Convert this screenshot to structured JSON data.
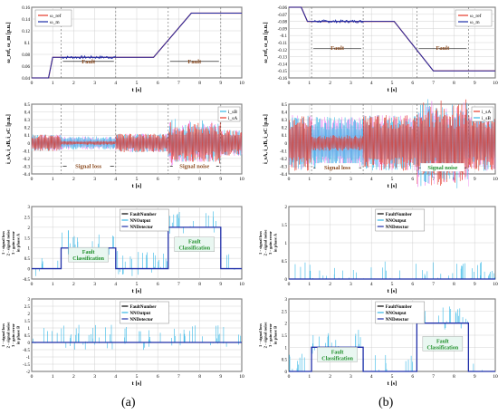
{
  "colors": {
    "blue": "#1f2ea8",
    "red": "#e53a2a",
    "cyan": "#35b7e6",
    "magenta": "#f07cf0",
    "green": "#1f8f2a",
    "brown": "#8a4a1f",
    "orange": "#d8822a",
    "grid": "#c8c8c8"
  },
  "labels": {
    "a": "(a)",
    "b": "(b)"
  },
  "chart_data": [
    {
      "id": "a1",
      "type": "line",
      "ylabel": "ω_ref, ω_m [p.u.]",
      "xlabel": "t [s]",
      "xlim": [
        0,
        10
      ],
      "ylim": [
        0.04,
        0.16
      ],
      "xticks": [
        "0",
        "1",
        "2",
        "3",
        "4",
        "5",
        "6",
        "7",
        "8",
        "9",
        "10"
      ],
      "yticks": [
        "0.04",
        "0.06",
        "0.08",
        "0.1",
        "0.12",
        "0.14",
        "0.16"
      ],
      "series": [
        {
          "name": "ω_ref",
          "color": "#e53a2a",
          "x": [
            0,
            0.8,
            1.0,
            5.8,
            7.6,
            10
          ],
          "y": [
            0.04,
            0.04,
            0.075,
            0.075,
            0.15,
            0.15
          ]
        },
        {
          "name": "ω_m",
          "color": "#1f2ea8",
          "x": [
            0,
            0.8,
            1.0,
            5.8,
            7.6,
            10
          ],
          "y": [
            0.04,
            0.04,
            0.075,
            0.075,
            0.15,
            0.15
          ]
        }
      ],
      "annotations": [
        {
          "text": "Fault",
          "x1": 1.4,
          "x2": 4.0,
          "y": 0.068
        },
        {
          "text": "Fault",
          "x1": 6.5,
          "x2": 9.0,
          "y": 0.068
        }
      ],
      "fault_lines": [
        1.4,
        4.0,
        6.5,
        9.0
      ]
    },
    {
      "id": "b1",
      "type": "line",
      "ylabel": "ω_ref, ω_m [p.u.]",
      "xlabel": "t [s]",
      "xlim": [
        0,
        10
      ],
      "ylim": [
        -0.16,
        -0.06
      ],
      "xticks": [
        "0",
        "1",
        "2",
        "3",
        "4",
        "5",
        "6",
        "7",
        "8",
        "9",
        "10"
      ],
      "yticks": [
        "-0.06",
        "-0.07",
        "-0.08",
        "-0.09",
        "-0.1",
        "-0.11",
        "-0.12",
        "-0.13",
        "-0.14",
        "-0.15",
        "-0.16"
      ],
      "series": [
        {
          "name": "ω_ref",
          "color": "#e53a2a",
          "x": [
            0,
            0.6,
            0.9,
            5.1,
            7.0,
            10
          ],
          "y": [
            -0.06,
            -0.06,
            -0.08,
            -0.08,
            -0.15,
            -0.15
          ]
        },
        {
          "name": "ω_m",
          "color": "#1f2ea8",
          "x": [
            0,
            0.6,
            0.9,
            5.1,
            7.0,
            10
          ],
          "y": [
            -0.06,
            -0.06,
            -0.08,
            -0.08,
            -0.15,
            -0.15
          ]
        }
      ],
      "annotations": [
        {
          "text": "Fault",
          "x1": 1.1,
          "x2": 3.6,
          "y": -0.118
        },
        {
          "text": "Fault",
          "x1": 6.2,
          "x2": 8.7,
          "y": -0.118
        }
      ],
      "fault_lines": [
        1.1,
        3.6,
        6.2,
        8.7
      ]
    },
    {
      "id": "a2",
      "type": "line",
      "ylabel": "i_sA, i_sB, i_sC [p.u.]",
      "xlabel": "t [s]",
      "xlim": [
        0,
        10
      ],
      "ylim": [
        -0.4,
        0.5
      ],
      "xticks": [
        "0",
        "1",
        "2",
        "3",
        "4",
        "5",
        "6",
        "7",
        "8",
        "9",
        "10"
      ],
      "yticks": [
        "-0.4",
        "-0.3",
        "-0.2",
        "-0.1",
        "0",
        "0.1",
        "0.2",
        "0.3",
        "0.4",
        "0.5"
      ],
      "series": [
        {
          "name": "i_sB",
          "color": "#35b7e6"
        },
        {
          "name": "i_sA",
          "color": "#e53a2a"
        }
      ],
      "segments": [
        {
          "x1": 0,
          "x2": 1.4,
          "amp": 0.09
        },
        {
          "x1": 1.4,
          "x2": 4.0,
          "amp": 0.07,
          "lossA": true
        },
        {
          "x1": 4.0,
          "x2": 6.5,
          "amp": 0.1
        },
        {
          "x1": 6.5,
          "x2": 9.0,
          "amp": 0.22,
          "noise": true
        },
        {
          "x1": 9.0,
          "x2": 10,
          "amp": 0.14
        }
      ],
      "annotations": [
        {
          "text": "Signal loss",
          "x1": 1.4,
          "x2": 4.0,
          "y": -0.3
        },
        {
          "text": "Signal noise",
          "x1": 6.5,
          "x2": 9.0,
          "y": -0.3
        }
      ],
      "fault_lines": [
        1.4,
        4.0,
        6.5,
        9.0
      ]
    },
    {
      "id": "b2",
      "type": "line",
      "ylabel": "i_sA, i_sB, i_sC [p.u.]",
      "xlabel": "t [s]",
      "xlim": [
        0,
        10
      ],
      "ylim": [
        -0.4,
        0.5
      ],
      "xticks": [
        "0",
        "1",
        "2",
        "3",
        "4",
        "5",
        "6",
        "7",
        "8",
        "9",
        "10"
      ],
      "yticks": [
        "-0.4",
        "-0.3",
        "-0.2",
        "-0.1",
        "0",
        "0.1",
        "0.2",
        "0.3",
        "0.4",
        "0.5"
      ],
      "series": [
        {
          "name": "i_sA",
          "color": "#e53a2a"
        },
        {
          "name": "i_sB",
          "color": "#35b7e6"
        }
      ],
      "segments": [
        {
          "x1": 0,
          "x2": 1.1,
          "amp": 0.3
        },
        {
          "x1": 1.1,
          "x2": 3.6,
          "amp": 0.28,
          "lossA": true
        },
        {
          "x1": 3.6,
          "x2": 6.2,
          "amp": 0.3
        },
        {
          "x1": 6.2,
          "x2": 8.7,
          "amp": 0.42,
          "noise": true
        },
        {
          "x1": 8.7,
          "x2": 10,
          "amp": 0.3
        }
      ],
      "annotations": [
        {
          "text": "Signal loss",
          "x1": 1.1,
          "x2": 3.6,
          "y": -0.32
        },
        {
          "text": "Signal noise",
          "x1": 6.2,
          "x2": 8.7,
          "y": -0.32
        }
      ],
      "fault_lines": [
        1.1,
        3.6,
        6.2,
        8.7
      ]
    },
    {
      "id": "a3",
      "type": "line",
      "ylabel": "1 - signal loss\n2 - signal noise\n3 - gain error\nin phase A",
      "xlabel": "t [s]",
      "xlim": [
        0,
        10
      ],
      "ylim": [
        -0.5,
        3
      ],
      "xticks": [
        "0",
        "1",
        "2",
        "3",
        "4",
        "5",
        "6",
        "7",
        "8",
        "9",
        "10"
      ],
      "yticks": [
        "-0.5",
        "0",
        "0.5",
        "1",
        "1.5",
        "2",
        "2.5",
        "3"
      ],
      "legend": [
        "Fault_Number",
        "NN_Output",
        "NN_Detector"
      ],
      "steps": [
        {
          "x1": 1.4,
          "x2": 4.0,
          "level": 1
        },
        {
          "x1": 6.5,
          "x2": 9.0,
          "level": 2
        }
      ],
      "annotations": [
        {
          "text": "Fault\nClassification",
          "x1": 1.4,
          "x2": 4.0,
          "y": 0.5
        },
        {
          "text": "Fault\nClassification",
          "x1": 6.5,
          "x2": 9.0,
          "y": 1.0
        }
      ]
    },
    {
      "id": "b3",
      "type": "line",
      "ylabel": "1 - signal loss\n2 - signal noise\n3 - gain error\nin phase A",
      "xlabel": "t [s]",
      "xlim": [
        0,
        10
      ],
      "ylim": [
        0,
        2
      ],
      "xticks": [
        "0",
        "1",
        "2",
        "3",
        "4",
        "5",
        "6",
        "7",
        "8",
        "9",
        "10"
      ],
      "yticks": [
        "0",
        "0.5",
        "1",
        "1.5",
        "2"
      ],
      "legend": [
        "Fault_Number",
        "NN_Output",
        "NN_Detector"
      ],
      "steps": []
    },
    {
      "id": "a4",
      "type": "line",
      "ylabel": "1 - signal loss\n2 - signal noise\n3 - gain error\nin phase B",
      "xlabel": "t [s]",
      "xlim": [
        0,
        10
      ],
      "ylim": [
        -2,
        3
      ],
      "xticks": [
        "0",
        "1",
        "2",
        "3",
        "4",
        "5",
        "6",
        "7",
        "8",
        "9",
        "10"
      ],
      "yticks": [
        "-2",
        "-1.5",
        "-1",
        "-0.5",
        "0",
        "0.5",
        "1",
        "1.5",
        "2",
        "2.5",
        "3"
      ],
      "legend": [
        "Fault_Number",
        "NN_Output",
        "NN_Detector"
      ],
      "steps": []
    },
    {
      "id": "b4",
      "type": "line",
      "ylabel": "1 - signal loss\n2 - signal noise\n3 - gain error\nin phase B",
      "xlabel": "t [s]",
      "xlim": [
        0,
        10
      ],
      "ylim": [
        0,
        3
      ],
      "xticks": [
        "0",
        "1",
        "2",
        "3",
        "4",
        "5",
        "6",
        "7",
        "8",
        "9",
        "10"
      ],
      "yticks": [
        "0",
        "0.5",
        "1",
        "1.5",
        "2",
        "2.5",
        "3"
      ],
      "legend": [
        "Fault_Number",
        "NN_Output",
        "NN_Detector"
      ],
      "steps": [
        {
          "x1": 1.1,
          "x2": 3.6,
          "level": 1
        },
        {
          "x1": 6.2,
          "x2": 8.7,
          "level": 2
        }
      ],
      "annotations": [
        {
          "text": "Fault\nClassification",
          "x1": 1.1,
          "x2": 3.6,
          "y": 0.55
        },
        {
          "text": "Fault\nClassification",
          "x1": 6.2,
          "x2": 8.7,
          "y": 1.0
        }
      ]
    }
  ]
}
